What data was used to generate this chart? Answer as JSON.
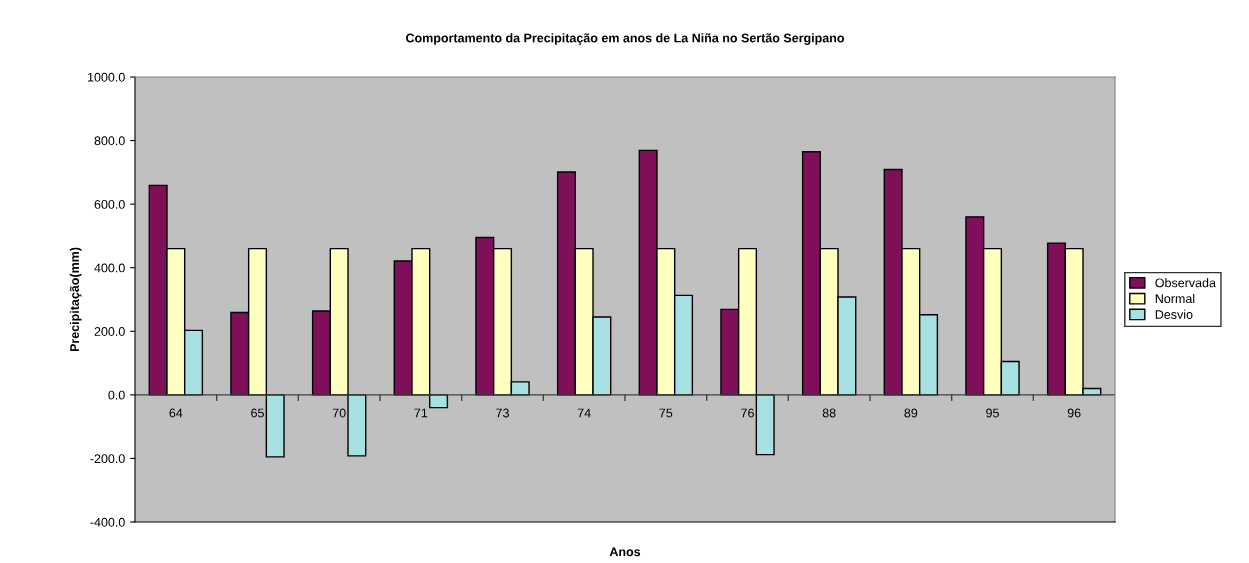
{
  "chart_data": {
    "type": "bar",
    "title": "Comportamento da Precipitação em anos de La Niña no Sertão Sergipano",
    "xlabel": "Anos",
    "ylabel": "Precipitação(mm)",
    "categories": [
      "64",
      "65",
      "70",
      "71",
      "73",
      "74",
      "75",
      "76",
      "88",
      "89",
      "95",
      "96"
    ],
    "series": [
      {
        "name": "Observada",
        "color": "#800f5a",
        "values": [
          659,
          259,
          264,
          421,
          495,
          701,
          769,
          269,
          765,
          709,
          560,
          477
        ]
      },
      {
        "name": "Normal",
        "color": "#ffffc0",
        "values": [
          460,
          460,
          460,
          460,
          460,
          460,
          460,
          460,
          460,
          460,
          460,
          460
        ]
      },
      {
        "name": "Desvio",
        "color": "#a6e0e0",
        "values": [
          203,
          -195,
          -192,
          -40,
          41,
          245,
          313,
          -188,
          308,
          252,
          105,
          20
        ]
      }
    ],
    "ylim": [
      -400,
      1000
    ],
    "yticks": [
      {
        "value": -400,
        "label": "-400.0"
      },
      {
        "value": -200,
        "label": "-200.0"
      },
      {
        "value": 0,
        "label": "0.0"
      },
      {
        "value": 200,
        "label": "200.0"
      },
      {
        "value": 400,
        "label": "400.0"
      },
      {
        "value": 600,
        "label": "600.0"
      },
      {
        "value": 800,
        "label": "800.0"
      },
      {
        "value": 1000,
        "label": "1000.0"
      }
    ],
    "grid": false,
    "legend": "right"
  }
}
